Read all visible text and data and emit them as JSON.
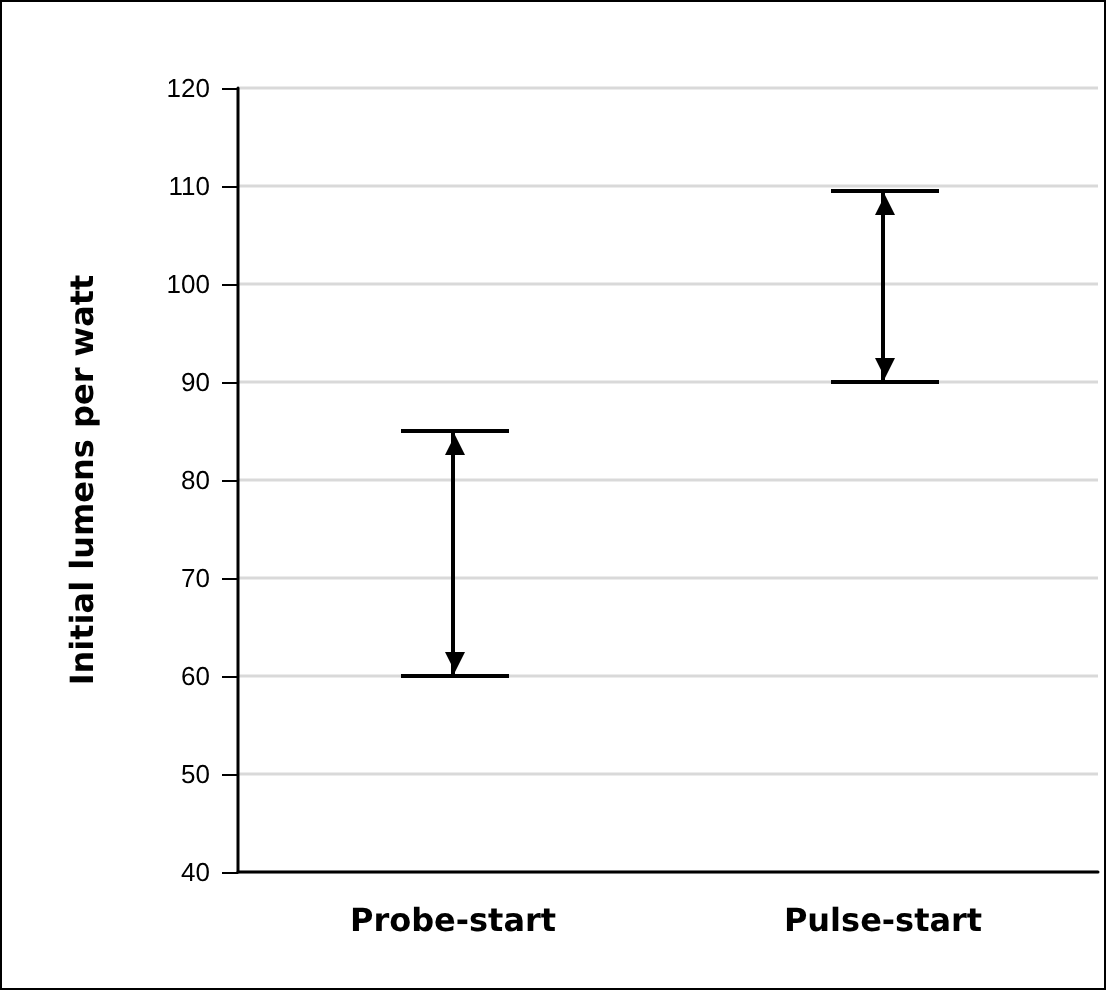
{
  "chart_data": {
    "type": "bar",
    "ylabel": "Initial lumens per watt",
    "categories": [
      "Probe-start",
      "Pulse-start"
    ],
    "base": [
      60,
      90
    ],
    "values": [
      25,
      19.5
    ],
    "color": "#000000",
    "ylim": [
      40,
      120
    ],
    "yticks": [
      40,
      50,
      60,
      70,
      80,
      90,
      100,
      110,
      120
    ],
    "grid": "y"
  }
}
